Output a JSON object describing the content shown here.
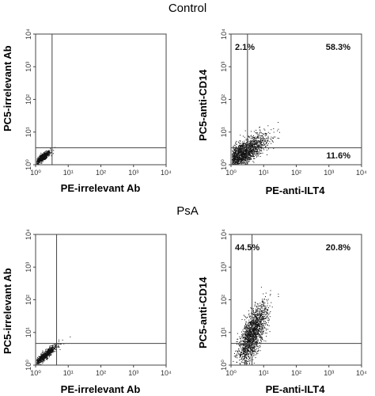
{
  "headings": {
    "control": "Control",
    "psa": "PsA"
  },
  "tick_labels": [
    "10⁰",
    "10¹",
    "10²",
    "10³",
    "10⁴"
  ],
  "chart_data": [
    {
      "type": "scatter",
      "group": "Control",
      "xlabel": "PE-irrelevant Ab",
      "ylabel": "PC5-irrelevant Ab",
      "xscale": "log",
      "yscale": "log",
      "xlim": [
        1,
        10000
      ],
      "ylim": [
        1,
        10000
      ],
      "gate": {
        "x": 3.2,
        "y": 3.3
      },
      "quadrant_labels": {
        "upper_left": "",
        "upper_right": "",
        "lower_right": ""
      },
      "cloud": {
        "center": [
          1.6,
          1.7
        ],
        "spread": [
          0.12,
          0.1
        ],
        "corr": 0.85,
        "count": 700,
        "extra": []
      }
    },
    {
      "type": "scatter",
      "group": "Control",
      "xlabel": "PE-anti-ILT4",
      "ylabel": "PC5-anti-CD14",
      "xscale": "log",
      "yscale": "log",
      "xlim": [
        1,
        10000
      ],
      "ylim": [
        1,
        10000
      ],
      "gate": {
        "x": 3.2,
        "y": 3.3
      },
      "quadrant_labels": {
        "upper_left": "2.1%",
        "upper_right": "58.3%",
        "lower_right": "11.6%"
      },
      "cloud": {
        "center": [
          2.0,
          2.05
        ],
        "spread": [
          0.35,
          0.28
        ],
        "corr": 0.75,
        "count": 1800,
        "extra": [
          [
            2.8,
            2.9,
            0.4,
            0.35,
            200
          ]
        ]
      }
    },
    {
      "type": "scatter",
      "group": "PsA",
      "xlabel": "PE-irrelevant Ab",
      "ylabel": "PC5-irrelevant Ab",
      "xscale": "log",
      "yscale": "log",
      "xlim": [
        1,
        10000
      ],
      "ylim": [
        1,
        10000
      ],
      "gate": {
        "x": 4.4,
        "y": 4.6
      },
      "quadrant_labels": {
        "upper_left": "",
        "upper_right": "",
        "lower_right": ""
      },
      "cloud": {
        "center": [
          1.9,
          2.0
        ],
        "spread": [
          0.18,
          0.16
        ],
        "corr": 0.92,
        "count": 800,
        "extra": []
      }
    },
    {
      "type": "scatter",
      "group": "PsA",
      "xlabel": "PE-anti-ILT4",
      "ylabel": "PC5-anti-CD14",
      "xscale": "log",
      "yscale": "log",
      "xlim": [
        1,
        10000
      ],
      "ylim": [
        1,
        10000
      ],
      "gate": {
        "x": 4.4,
        "y": 4.6
      },
      "quadrant_labels": {
        "upper_left": "44.5%",
        "upper_right": "20.8%",
        "lower_right": ""
      },
      "cloud": {
        "center": [
          4.5,
          9.0
        ],
        "spread": [
          0.22,
          0.45
        ],
        "corr": 0.7,
        "count": 1700,
        "extra": []
      }
    }
  ]
}
